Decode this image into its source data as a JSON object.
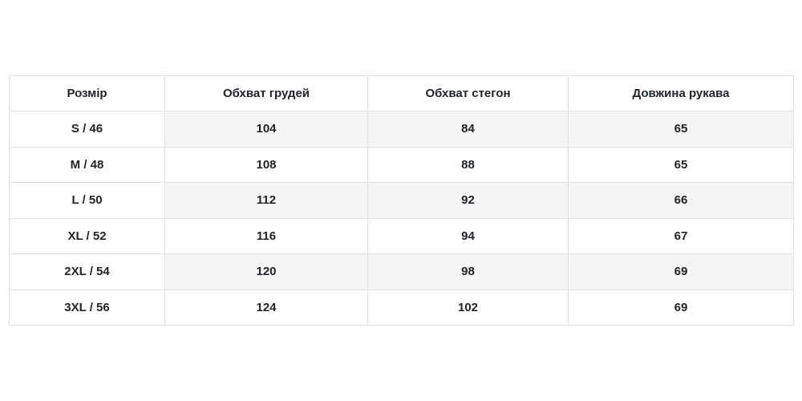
{
  "chart_data": {
    "type": "table",
    "title": "",
    "columns": [
      "Розмір",
      "Обхват грудей",
      "Обхват стегон",
      "Довжина рукава"
    ],
    "rows": [
      [
        "S / 46",
        "104",
        "84",
        "65"
      ],
      [
        "M / 48",
        "108",
        "88",
        "65"
      ],
      [
        "L / 50",
        "112",
        "92",
        "66"
      ],
      [
        "XL / 52",
        "116",
        "94",
        "67"
      ],
      [
        "2XL / 54",
        "120",
        "98",
        "69"
      ],
      [
        "3XL / 56",
        "124",
        "102",
        "69"
      ]
    ],
    "layout_hints": {
      "striped_rows": [
        0,
        2,
        4
      ],
      "stripe_applies_to_columns": [
        1,
        2,
        3
      ],
      "grid": true
    }
  },
  "colors": {
    "border": "#dee2e6",
    "stripe": "#f5f5f6",
    "text": "#212529",
    "background": "#ffffff"
  }
}
